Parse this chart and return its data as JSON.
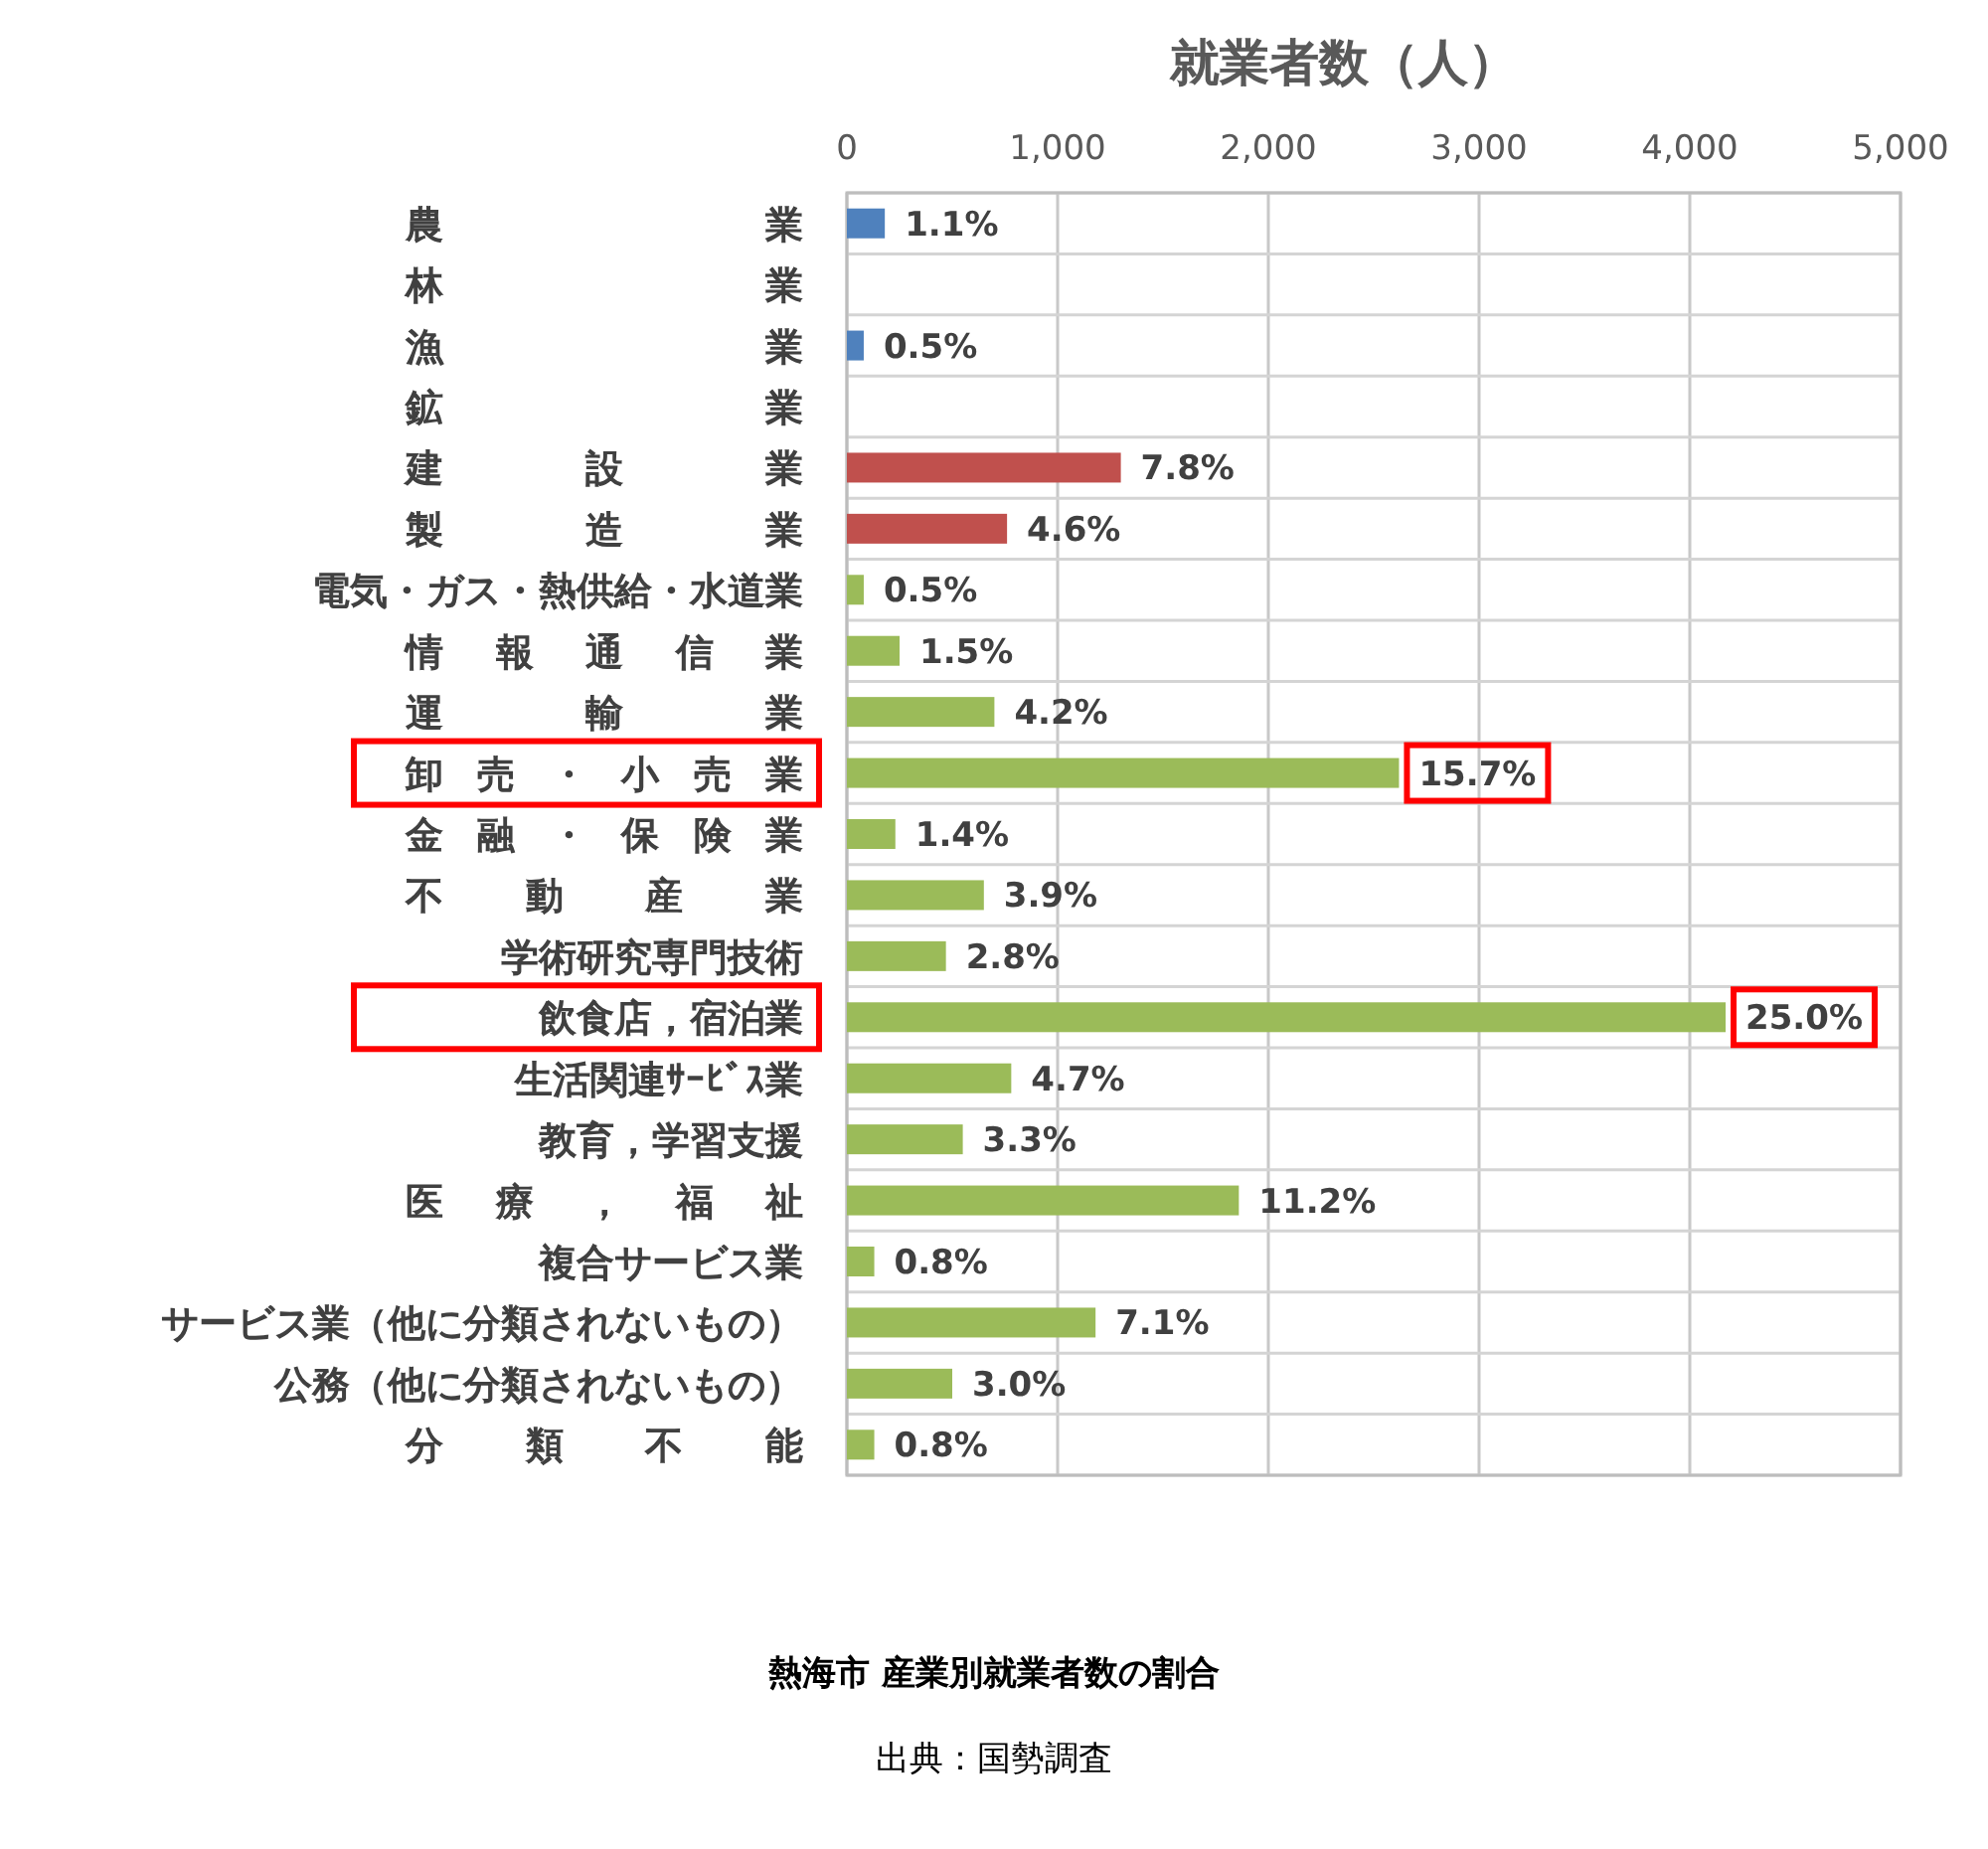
{
  "chart_data": {
    "type": "bar",
    "orientation": "horizontal",
    "title": "熱海市 産業別就業者数の割合",
    "xlabel": "就業者数（人）",
    "annotations": [
      {
        "text": "1.1%",
        "x": 180,
        "y": "農業"
      },
      {
        "text": "0.5%",
        "x": 80,
        "y": "漁業"
      },
      {
        "text": "7.8%",
        "x": 1300,
        "y": "建設業"
      },
      {
        "text": "4.6%",
        "x": 760,
        "y": "製造業"
      },
      {
        "text": "0.5%",
        "x": 80,
        "y": "電気・ガス・熱供給・水道業"
      },
      {
        "text": "1.5%",
        "x": 250,
        "y": "情報通信業"
      },
      {
        "text": "4.2%",
        "x": 700,
        "y": "運輸業"
      },
      {
        "text": "15.7%",
        "x": 2620,
        "y": "卸売・小売業"
      },
      {
        "text": "1.4%",
        "x": 230,
        "y": "金融・保険業"
      },
      {
        "text": "3.9%",
        "x": 650,
        "y": "不動産業"
      },
      {
        "text": "2.8%",
        "x": 470,
        "y": "学術研究専門技術"
      },
      {
        "text": "25.0%",
        "x": 4170,
        "y": "飲食店，宿泊業"
      },
      {
        "text": "4.7%",
        "x": 780,
        "y": "生活関連ｻｰﾋﾞｽ業"
      },
      {
        "text": "3.3%",
        "x": 550,
        "y": "教育，学習支援"
      },
      {
        "text": "11.2%",
        "x": 1860,
        "y": "医療，福祉"
      },
      {
        "text": "0.8%",
        "x": 130,
        "y": "複合サービス業"
      },
      {
        "text": "7.1%",
        "x": 1180,
        "y": "サービス業（他に分類されないもの）"
      },
      {
        "text": "3.0%",
        "x": 500,
        "y": "公務（他に分類されないもの）"
      },
      {
        "text": "0.8%",
        "x": 130,
        "y": "分類不能"
      },
      "出典：国勢調査"
    ],
    "categories": [
      "農業",
      "林業",
      "漁業",
      "鉱業",
      "建設業",
      "製造業",
      "電気・ガス・熱供給・水道業",
      "情報通信業",
      "運輸業",
      "卸売・小売業",
      "金融・保険業",
      "不動産業",
      "学術研究専門技術",
      "飲食店，宿泊業",
      "生活関連ｻｰﾋﾞｽ業",
      "教育，学習支援",
      "医療，福祉",
      "複合サービス業",
      "サービス業（他に分類されないもの）",
      "公務（他に分類されないもの）",
      "分類不能"
    ],
    "values": [
      180,
      0,
      80,
      0,
      1300,
      760,
      80,
      250,
      700,
      2620,
      230,
      650,
      470,
      4170,
      780,
      550,
      1860,
      130,
      1180,
      500,
      130
    ],
    "colors": [
      "#4f81bd",
      "#4f81bd",
      "#4f81bd",
      "#4f81bd",
      "#c0504d",
      "#c0504d",
      "#9bbb59",
      "#9bbb59",
      "#9bbb59",
      "#9bbb59",
      "#9bbb59",
      "#9bbb59",
      "#9bbb59",
      "#9bbb59",
      "#9bbb59",
      "#9bbb59",
      "#9bbb59",
      "#9bbb59",
      "#9bbb59",
      "#9bbb59",
      "#9bbb59"
    ],
    "xlim": [
      0,
      5000
    ],
    "xticks": [
      {
        "value": 0,
        "label": "0"
      },
      {
        "value": 1000,
        "label": "1,000"
      },
      {
        "value": 2000,
        "label": "2,000"
      },
      {
        "value": 3000,
        "label": "3,000"
      },
      {
        "value": 4000,
        "label": "4,000"
      },
      {
        "value": 5000,
        "label": "5,000"
      }
    ],
    "grid": true
  }
}
